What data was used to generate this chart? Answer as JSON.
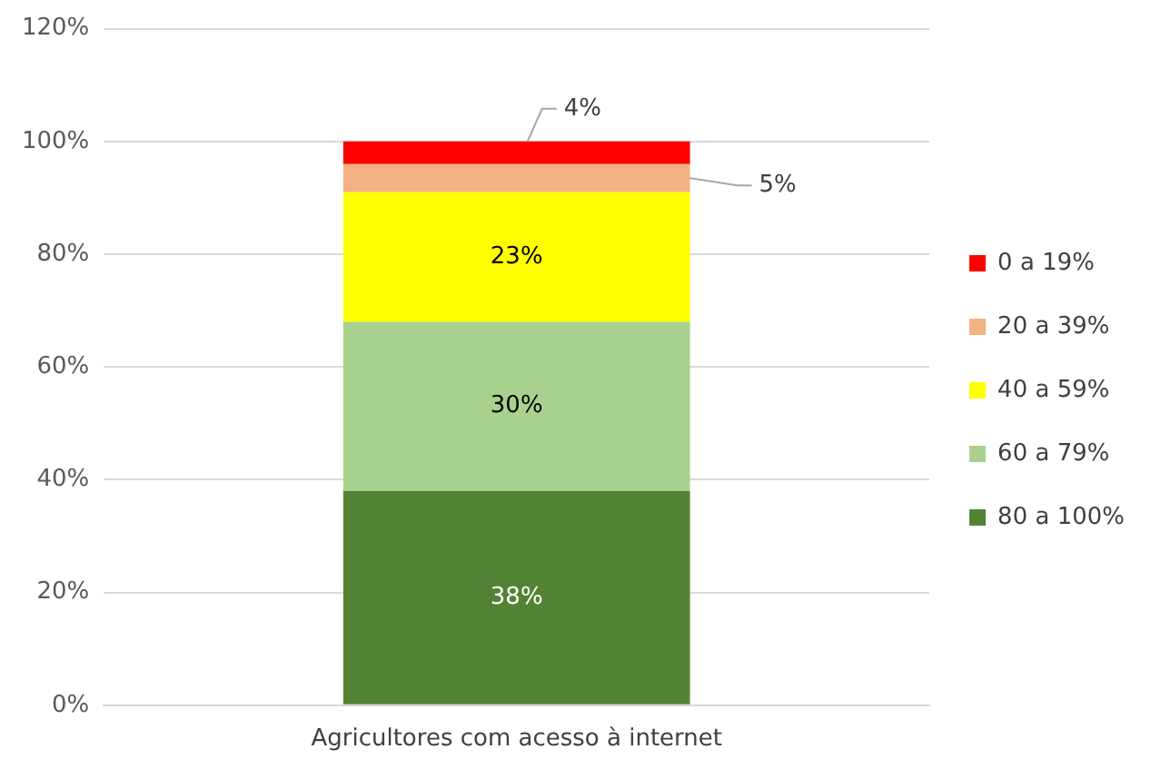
{
  "chart_data": {
    "type": "bar",
    "stacked": true,
    "categories": [
      "Agricultores com acesso à internet"
    ],
    "series": [
      {
        "name": "80 a 100%",
        "color": "#548235",
        "values": [
          38
        ],
        "value_labels": [
          "38%"
        ]
      },
      {
        "name": "60 a 79%",
        "color": "#a9d18e",
        "values": [
          30
        ],
        "value_labels": [
          "30%"
        ]
      },
      {
        "name": "40 a 59%",
        "color": "#ffff00",
        "values": [
          23
        ],
        "value_labels": [
          "23%"
        ]
      },
      {
        "name": "20 a 39%",
        "color": "#f4b183",
        "values": [
          5
        ],
        "value_labels": [
          "5%"
        ]
      },
      {
        "name": "0 a 19%",
        "color": "#ff0000",
        "values": [
          4
        ],
        "value_labels": [
          "4%"
        ]
      }
    ],
    "ylim": [
      0,
      120
    ],
    "yticks": [
      {
        "value": 0,
        "label": "0%"
      },
      {
        "value": 20,
        "label": "20%"
      },
      {
        "value": 40,
        "label": "40%"
      },
      {
        "value": 60,
        "label": "60%"
      },
      {
        "value": 80,
        "label": "80%"
      },
      {
        "value": 100,
        "label": "100%"
      },
      {
        "value": 120,
        "label": "120%"
      }
    ],
    "grid": "y",
    "legend": "right"
  }
}
